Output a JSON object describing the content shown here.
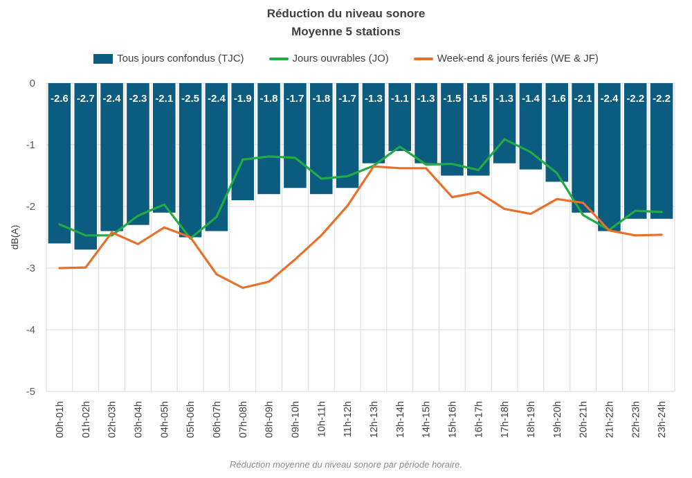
{
  "chart_data": {
    "type": "bar+line",
    "title": "Réduction du niveau sonore",
    "subtitle": "Moyenne 5 stations",
    "ylabel": "dB(A)",
    "xlabel": "",
    "ylim": [
      -5,
      0
    ],
    "yticks": [
      0,
      -1,
      -2,
      -3,
      -4,
      -5
    ],
    "grid": true,
    "legend_position": "top",
    "categories": [
      "00h-01h",
      "01h-02h",
      "02h-03h",
      "03h-04h",
      "04h-05h",
      "05h-06h",
      "06h-07h",
      "07h-08h",
      "08h-09h",
      "09h-10h",
      "10h-11h",
      "11h-12h",
      "12h-13h",
      "13h-14h",
      "14h-15h",
      "15h-16h",
      "16h-17h",
      "17h-18h",
      "18h-19h",
      "19h-20h",
      "20h-21h",
      "21h-22h",
      "22h-23h",
      "23h-24h"
    ],
    "series": [
      {
        "name": "Tous jours confondus (TJC)",
        "kind": "bar",
        "color": "#0B5C7E",
        "values": [
          -2.6,
          -2.7,
          -2.4,
          -2.3,
          -2.1,
          -2.5,
          -2.4,
          -1.9,
          -1.8,
          -1.7,
          -1.8,
          -1.7,
          -1.3,
          -1.1,
          -1.3,
          -1.5,
          -1.5,
          -1.3,
          -1.4,
          -1.6,
          -2.1,
          -2.4,
          -2.2,
          -2.2
        ],
        "labels": [
          "-2.6",
          "-2.7",
          "-2.4",
          "-2.3",
          "-2.1",
          "-2.5",
          "-2.4",
          "-1.9",
          "-1.8",
          "-1.7",
          "-1.8",
          "-1.7",
          "-1.3",
          "-1.1",
          "-1.3",
          "-1.5",
          "-1.5",
          "-1.3",
          "-1.4",
          "-1.6",
          "-2.1",
          "-2.4",
          "-2.2",
          "-2.2"
        ]
      },
      {
        "name": "Jours ouvrables (JO)",
        "kind": "line",
        "color": "#22AA44",
        "values": [
          -2.29,
          -2.47,
          -2.47,
          -2.15,
          -1.97,
          -2.52,
          -2.17,
          -1.24,
          -1.19,
          -1.21,
          -1.55,
          -1.51,
          -1.34,
          -1.03,
          -1.32,
          -1.31,
          -1.41,
          -0.91,
          -1.12,
          -1.46,
          -2.14,
          -2.38,
          -2.07,
          -2.09
        ]
      },
      {
        "name": "Week-end & jours feriés (WE & JF)",
        "kind": "line",
        "color": "#E8702A",
        "values": [
          -3.0,
          -2.99,
          -2.42,
          -2.61,
          -2.34,
          -2.5,
          -3.1,
          -3.32,
          -3.22,
          -2.86,
          -2.47,
          -1.99,
          -1.35,
          -1.38,
          -1.38,
          -1.85,
          -1.77,
          -2.04,
          -2.12,
          -1.88,
          -1.94,
          -2.39,
          -2.47,
          -2.46
        ]
      }
    ],
    "caption": "Réduction moyenne du niveau sonore par période horaire."
  }
}
